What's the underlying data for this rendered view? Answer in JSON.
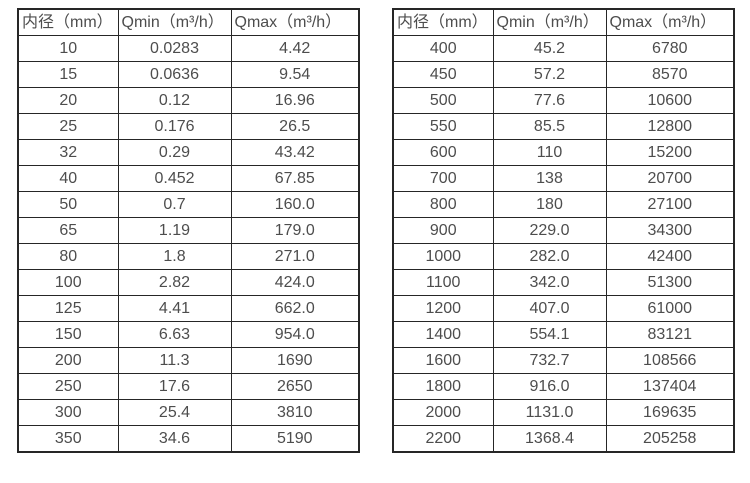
{
  "colors": {
    "background": "#ffffff",
    "border": "#262626",
    "text": "#4d4d4d"
  },
  "tables": [
    {
      "name": "flow-spec-table-small-diameters",
      "headers": [
        "内径（mm）",
        "Qmin（m³/h）",
        "Qmax（m³/h）"
      ],
      "rows": [
        [
          "10",
          "0.0283",
          "4.42"
        ],
        [
          "15",
          "0.0636",
          "9.54"
        ],
        [
          "20",
          "0.12",
          "16.96"
        ],
        [
          "25",
          "0.176",
          "26.5"
        ],
        [
          "32",
          "0.29",
          "43.42"
        ],
        [
          "40",
          "0.452",
          "67.85"
        ],
        [
          "50",
          "0.7",
          "160.0"
        ],
        [
          "65",
          "1.19",
          "179.0"
        ],
        [
          "80",
          "1.8",
          "271.0"
        ],
        [
          "100",
          "2.82",
          "424.0"
        ],
        [
          "125",
          "4.41",
          "662.0"
        ],
        [
          "150",
          "6.63",
          "954.0"
        ],
        [
          "200",
          "11.3",
          "1690"
        ],
        [
          "250",
          "17.6",
          "2650"
        ],
        [
          "300",
          "25.4",
          "3810"
        ],
        [
          "350",
          "34.6",
          "5190"
        ]
      ]
    },
    {
      "name": "flow-spec-table-large-diameters",
      "headers": [
        "内径（mm）",
        "Qmin（m³/h）",
        "Qmax（m³/h）"
      ],
      "rows": [
        [
          "400",
          "45.2",
          "6780"
        ],
        [
          "450",
          "57.2",
          "8570"
        ],
        [
          "500",
          "77.6",
          "10600"
        ],
        [
          "550",
          "85.5",
          "12800"
        ],
        [
          "600",
          "110",
          "15200"
        ],
        [
          "700",
          "138",
          "20700"
        ],
        [
          "800",
          "180",
          "27100"
        ],
        [
          "900",
          "229.0",
          "34300"
        ],
        [
          "1000",
          "282.0",
          "42400"
        ],
        [
          "1100",
          "342.0",
          "51300"
        ],
        [
          "1200",
          "407.0",
          "61000"
        ],
        [
          "1400",
          "554.1",
          "83121"
        ],
        [
          "1600",
          "732.7",
          "108566"
        ],
        [
          "1800",
          "916.0",
          "137404"
        ],
        [
          "2000",
          "1131.0",
          "169635"
        ],
        [
          "2200",
          "1368.4",
          "205258"
        ]
      ]
    }
  ]
}
